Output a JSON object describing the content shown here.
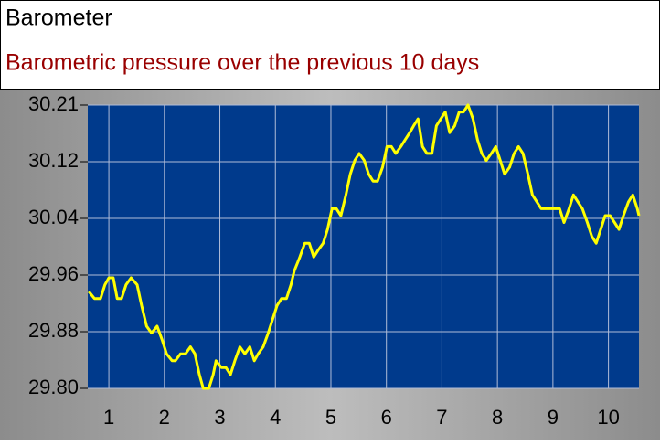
{
  "chart_data": {
    "type": "line",
    "title": "Barometer",
    "subtitle": "Barometric pressure over the previous 10 days",
    "x": [
      0.64,
      0.74,
      0.85,
      0.93,
      1.0,
      1.08,
      1.15,
      1.23,
      1.31,
      1.4,
      1.51,
      1.59,
      1.68,
      1.77,
      1.87,
      1.96,
      2.04,
      2.14,
      2.2,
      2.29,
      2.38,
      2.47,
      2.55,
      2.63,
      2.7,
      2.8,
      2.88,
      2.93,
      3.03,
      3.11,
      3.19,
      3.27,
      3.36,
      3.45,
      3.54,
      3.62,
      3.69,
      3.78,
      3.87,
      3.95,
      4.03,
      4.11,
      4.2,
      4.28,
      4.34,
      4.44,
      4.53,
      4.61,
      4.69,
      4.77,
      4.86,
      4.94,
      5.02,
      5.1,
      5.18,
      5.27,
      5.35,
      5.43,
      5.51,
      5.6,
      5.68,
      5.76,
      5.84,
      5.93,
      6.01,
      6.09,
      6.17,
      6.26,
      6.34,
      6.42,
      6.49,
      6.57,
      6.65,
      6.73,
      6.82,
      6.9,
      6.98,
      7.06,
      7.14,
      7.23,
      7.31,
      7.39,
      7.47,
      7.56,
      7.64,
      7.72,
      7.8,
      7.89,
      7.97,
      8.05,
      8.13,
      8.22,
      8.3,
      8.38,
      8.46,
      8.55,
      8.63,
      8.71,
      8.79,
      8.87,
      8.96,
      9.04,
      9.12,
      9.2,
      9.29,
      9.37,
      9.45,
      9.53,
      9.62,
      9.7,
      9.78,
      9.86,
      9.94,
      10.03,
      10.11,
      10.19,
      10.27,
      10.36,
      10.44,
      10.52,
      10.55
    ],
    "series": [
      {
        "color": "#ffff00",
        "values": [
          29.94,
          29.93,
          29.93,
          29.95,
          29.96,
          29.96,
          29.93,
          29.93,
          29.95,
          29.96,
          29.95,
          29.92,
          29.89,
          29.88,
          29.89,
          29.87,
          29.85,
          29.84,
          29.84,
          29.85,
          29.85,
          29.86,
          29.85,
          29.82,
          29.8,
          29.8,
          29.82,
          29.84,
          29.83,
          29.83,
          29.82,
          29.84,
          29.86,
          29.85,
          29.86,
          29.84,
          29.85,
          29.86,
          29.88,
          29.9,
          29.92,
          29.93,
          29.93,
          29.95,
          29.97,
          29.99,
          30.01,
          30.01,
          29.99,
          30.0,
          30.01,
          30.03,
          30.06,
          30.06,
          30.05,
          30.08,
          30.11,
          30.13,
          30.14,
          30.13,
          30.11,
          30.1,
          30.1,
          30.12,
          30.15,
          30.15,
          30.14,
          30.15,
          30.16,
          30.17,
          30.18,
          30.19,
          30.15,
          30.14,
          30.14,
          30.18,
          30.19,
          30.2,
          30.17,
          30.18,
          30.2,
          30.2,
          30.21,
          30.19,
          30.16,
          30.14,
          30.13,
          30.14,
          30.15,
          30.13,
          30.11,
          30.12,
          30.14,
          30.15,
          30.14,
          30.11,
          30.08,
          30.07,
          30.06,
          30.06,
          30.06,
          30.06,
          30.06,
          30.04,
          30.06,
          30.08,
          30.07,
          30.06,
          30.04,
          30.02,
          30.01,
          30.03,
          30.05,
          30.05,
          30.04,
          30.03,
          30.05,
          30.07,
          30.08,
          30.06,
          30.05
        ]
      }
    ],
    "xlim": [
      0.62,
      10.55
    ],
    "xticks": [
      1,
      2,
      3,
      4,
      5,
      6,
      7,
      8,
      9,
      10
    ],
    "ylim": [
      29.8,
      30.21
    ],
    "yticks": [
      {
        "value": 29.8,
        "label": "29.80"
      },
      {
        "value": 29.882,
        "label": "29.88"
      },
      {
        "value": 29.964,
        "label": "29.96"
      },
      {
        "value": 30.046,
        "label": "30.04"
      },
      {
        "value": 30.128,
        "label": "30.12"
      },
      {
        "value": 30.21,
        "label": "30.21"
      }
    ],
    "grid": true
  }
}
